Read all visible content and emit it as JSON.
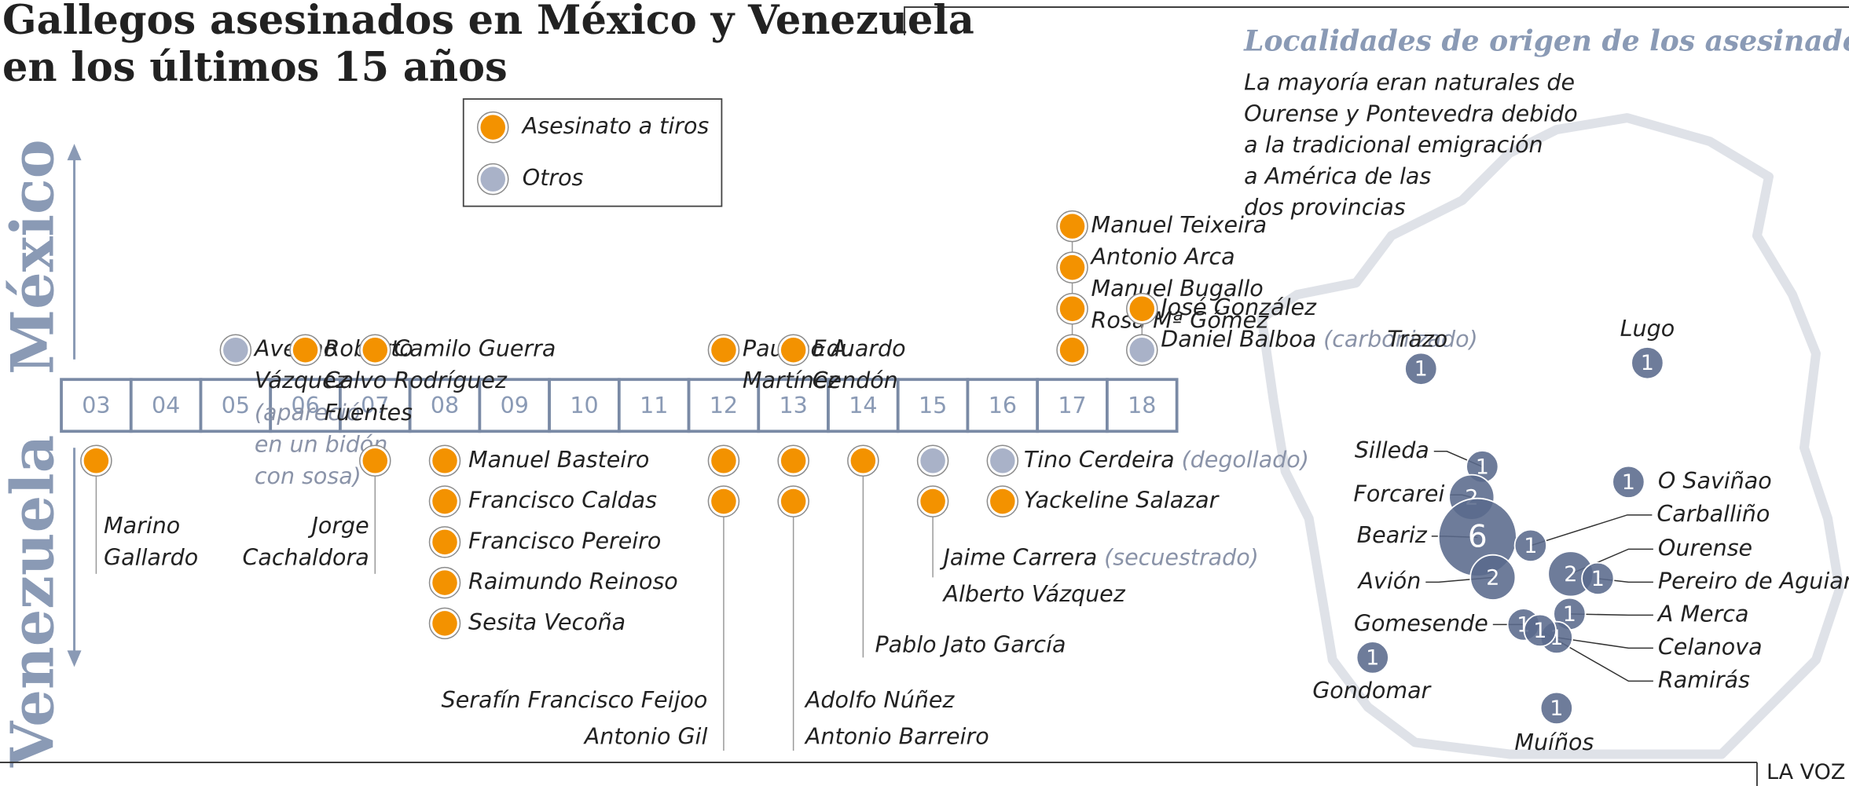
{
  "title": {
    "lines": [
      "Gallegos asesinados en México y Venezuela",
      "en los últimos 15 años"
    ]
  },
  "legend": [
    {
      "label": "Asesinato a tiros",
      "color": "#f39200"
    },
    {
      "label": "Otros",
      "color": "#a9b2c8"
    }
  ],
  "timeline": {
    "top_label": "México",
    "bottom_label": "Venezuela",
    "years": [
      {
        "label": "03",
        "mexico": [],
        "venezuela": [
          {
            "name": [
              "Marino",
              "Gallardo"
            ],
            "color": "#f39200"
          }
        ]
      },
      {
        "label": "04",
        "mexico": [],
        "venezuela": []
      },
      {
        "label": "05",
        "mexico": [
          {
            "name": [
              "Avelino",
              "Vázquez"
            ],
            "note": [
              "(apareció",
              "en un bidón",
              "con sosa)"
            ],
            "color": "#a9b2c8"
          }
        ],
        "venezuela": []
      },
      {
        "label": "06",
        "mexico": [
          {
            "name": [
              "Roberto",
              "Calvo",
              "Fuentes"
            ],
            "color": "#f39200"
          }
        ],
        "venezuela": []
      },
      {
        "label": "07",
        "mexico": [
          {
            "name": [
              "Camilo Guerra",
              "Rodríguez"
            ],
            "color": "#f39200"
          }
        ],
        "venezuela": [
          {
            "name": [
              "Jorge",
              "Cachaldora"
            ],
            "color": "#f39200"
          }
        ]
      },
      {
        "label": "08",
        "mexico": [],
        "venezuela": [
          {
            "name": "Manuel Basteiro",
            "color": "#f39200"
          },
          {
            "name": "Francisco Caldas",
            "color": "#f39200"
          },
          {
            "name": "Francisco Pereiro",
            "color": "#f39200"
          },
          {
            "name": "Raimundo Reinoso",
            "color": "#f39200"
          },
          {
            "name": "Sesita Vecoña",
            "color": "#f39200"
          }
        ]
      },
      {
        "label": "09",
        "mexico": [],
        "venezuela": []
      },
      {
        "label": "10",
        "mexico": [],
        "venezuela": []
      },
      {
        "label": "11",
        "mexico": [],
        "venezuela": []
      },
      {
        "label": "12",
        "mexico": [
          {
            "name": [
              "Paulino A.",
              "Martínez"
            ],
            "color": "#f39200"
          }
        ],
        "venezuela": [
          {
            "name": "Serafín Francisco Feijoo",
            "color": "#f39200"
          },
          {
            "name": "Antonio Gil",
            "color": "#f39200"
          }
        ]
      },
      {
        "label": "13",
        "mexico": [
          {
            "name": [
              "Eduardo",
              "Cendón"
            ],
            "color": "#f39200"
          }
        ],
        "venezuela": [
          {
            "name": "Adolfo Núñez",
            "color": "#f39200"
          },
          {
            "name": "Antonio Barreiro",
            "color": "#f39200"
          }
        ]
      },
      {
        "label": "14",
        "mexico": [],
        "venezuela": [
          {
            "name": "Pablo Jato García",
            "color": "#f39200"
          }
        ]
      },
      {
        "label": "15",
        "mexico": [],
        "venezuela": [
          {
            "name": "Jaime Carrera",
            "note": "(secuestrado)",
            "color": "#a9b2c8"
          },
          {
            "name": "Alberto Vázquez",
            "color": "#f39200"
          }
        ]
      },
      {
        "label": "16",
        "mexico": [],
        "venezuela": [
          {
            "name": "Tino Cerdeira",
            "note": "(degollado)",
            "color": "#a9b2c8"
          },
          {
            "name": "Yackeline Salazar",
            "color": "#f39200"
          }
        ]
      },
      {
        "label": "17",
        "mexico": [
          {
            "name": "Manuel Teixeira",
            "color": "#f39200"
          },
          {
            "name": "Antonio Arca",
            "color": "#f39200"
          },
          {
            "name": "Manuel Bugallo",
            "color": "#f39200"
          },
          {
            "name": "Rosa Mª Gómez",
            "color": "#f39200"
          }
        ],
        "venezuela": []
      },
      {
        "label": "18",
        "mexico": [
          {
            "name": "José González",
            "color": "#f39200"
          },
          {
            "name": "Daniel Balboa",
            "note": "(carbonizado)",
            "color": "#a9b2c8"
          }
        ],
        "venezuela": []
      }
    ]
  },
  "map": {
    "title": "Localidades de origen de los asesinados",
    "subtitle": [
      "La mayoría eran naturales de",
      "Ourense y Pontevedra debido",
      "a la tradicional emigración",
      "a América de las",
      "dos provincias"
    ],
    "color": "#5a6a8c",
    "places": [
      {
        "name": "Trazo",
        "count": 1
      },
      {
        "name": "Lugo",
        "count": 1
      },
      {
        "name": "Silleda",
        "count": 1
      },
      {
        "name": "Forcarei",
        "count": 2
      },
      {
        "name": "Beariz",
        "count": 6
      },
      {
        "name": "Avión",
        "count": 2
      },
      {
        "name": "Carballiño",
        "count": 1
      },
      {
        "name": "O Saviñao",
        "count": 1
      },
      {
        "name": "Ourense",
        "count": 2
      },
      {
        "name": "Pereiro de Aguiar",
        "count": 1
      },
      {
        "name": "A Merca",
        "count": 1
      },
      {
        "name": "Gomesende",
        "count": 1
      },
      {
        "name": "Celanova",
        "count": 1
      },
      {
        "name": "Ramirás",
        "count": 1
      },
      {
        "name": "Gondomar",
        "count": 1
      },
      {
        "name": "Muíños",
        "count": 1
      }
    ]
  },
  "footer": {
    "source": "LA VOZ"
  }
}
